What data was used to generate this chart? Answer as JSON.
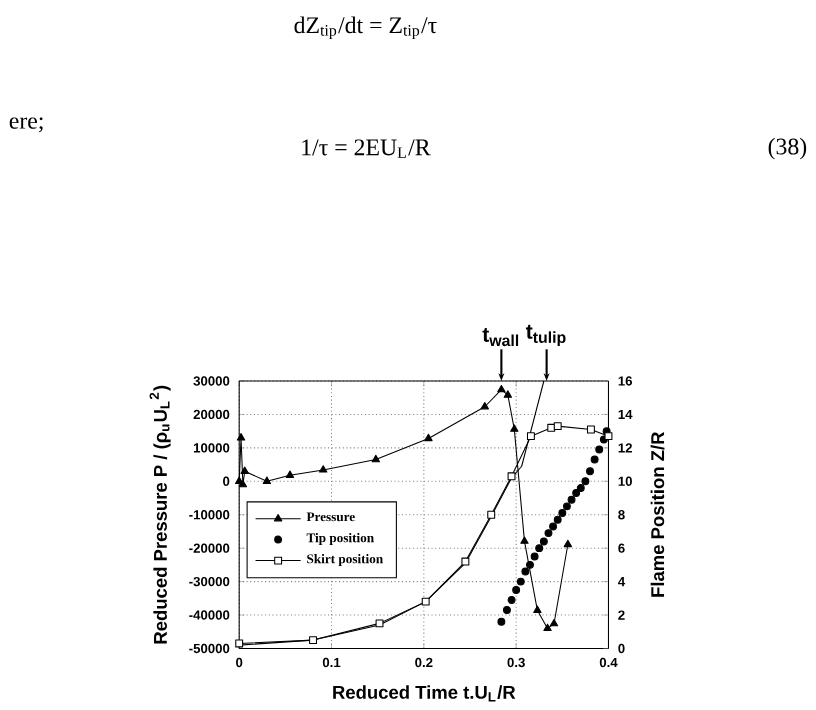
{
  "chart_data": {
    "type": "line",
    "xlabel": "Reduced Time  t.U$_{L}$/R",
    "ylabel": "Reduced Pressure  P / (ρ$_{u}$U$_{L}$$^{2}$)",
    "y2label": "Flame Position  Z/R",
    "xlim": [
      0,
      0.4
    ],
    "xticks": [
      0,
      0.1,
      0.2,
      0.3,
      0.4
    ],
    "ylim": [
      -50000,
      30000
    ],
    "yticks": [
      -50000,
      -40000,
      -30000,
      -20000,
      -10000,
      0,
      10000,
      20000,
      30000
    ],
    "y2lim": [
      0,
      16
    ],
    "y2ticks": [
      0,
      2,
      4,
      6,
      8,
      10,
      12,
      14,
      16
    ],
    "grid": true,
    "legend": "left",
    "annotations": [
      "dZ$_{tip}$/dt = Z$_{tip}$/τ",
      "ere;",
      "1/τ = 2EU$_{L}$/R",
      "(38)",
      {
        "text": "t$_{wall}$",
        "x": 0.284,
        "y": 30000
      },
      {
        "text": "t$_{tulip}$",
        "x": 0.333,
        "y": 30000
      }
    ],
    "series": [
      {
        "name": "Pressure",
        "marker": "triangle",
        "color": "#000000",
        "x": [
          0,
          0.002,
          0.004,
          0.006,
          0.03,
          0.055,
          0.091,
          0.148,
          0.205,
          0.266,
          0.284,
          0.291,
          0.298,
          0.309,
          0.323,
          0.334,
          0.341,
          0.356
        ],
        "values": [
          0,
          13000,
          -1000,
          3000,
          0,
          1800,
          3400,
          6500,
          12800,
          22300,
          27400,
          25800,
          15600,
          -17900,
          -38600,
          -44000,
          -42600,
          -18900
        ]
      },
      {
        "name": "Tip position",
        "type": "scatter",
        "marker": "circle",
        "axis": "y2",
        "color": "#000000",
        "x": [
          0.284,
          0.29,
          0.295,
          0.3,
          0.305,
          0.31,
          0.315,
          0.32,
          0.325,
          0.33,
          0.335,
          0.34,
          0.345,
          0.35,
          0.355,
          0.36,
          0.365,
          0.37,
          0.375,
          0.38,
          0.385,
          0.39,
          0.395,
          0.398
        ],
        "values": [
          1.6,
          2.3,
          2.9,
          3.5,
          4.0,
          4.6,
          5.0,
          5.5,
          6.0,
          6.4,
          6.9,
          7.3,
          7.7,
          8.1,
          8.5,
          8.9,
          9.3,
          9.6,
          10.0,
          10.6,
          11.3,
          11.9,
          12.5,
          13.0
        ]
      },
      {
        "name": "Skirt position",
        "marker": "square",
        "axis": "y2",
        "color": "#000000",
        "x": [
          0,
          0.08,
          0.152,
          0.202,
          0.245,
          0.273,
          0.295,
          0.316,
          0.338,
          0.345,
          0.381,
          0.4
        ],
        "values": [
          0.3,
          0.5,
          1.5,
          2.8,
          5.2,
          8.0,
          10.3,
          12.7,
          13.2,
          13.3,
          13.1,
          12.7
        ]
      },
      {
        "marker": "none",
        "axis": "y2",
        "color": "#000000",
        "x": [
          0,
          0.08,
          0.152,
          0.202,
          0.245,
          0.273,
          0.295,
          0.306,
          0.33
        ],
        "values": [
          0.2,
          0.5,
          1.4,
          2.8,
          5.1,
          7.9,
          10.2,
          10.9,
          16
        ]
      }
    ]
  }
}
